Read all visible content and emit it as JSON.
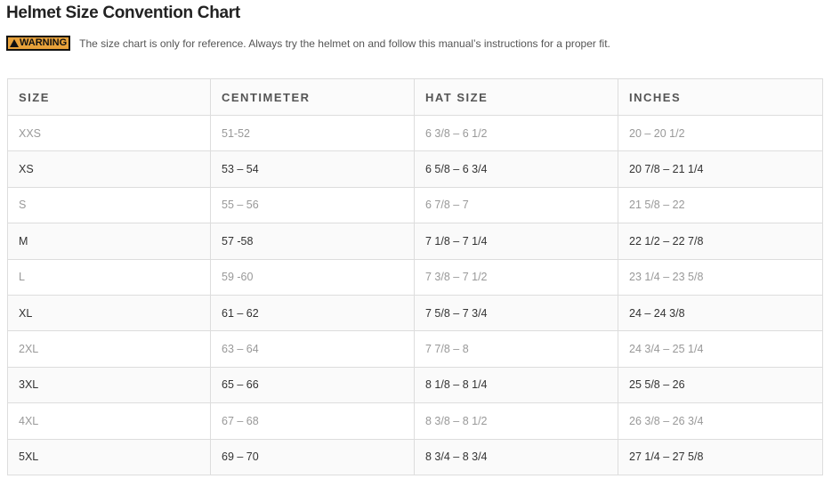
{
  "title": "Helmet Size Convention Chart",
  "warning": {
    "badge": "WARNING",
    "icon": "warning-triangle-icon",
    "text": "The size chart is only for reference. Always try the helmet on and follow this manual’s instructions for a proper fit.",
    "badge_color": "#e8a23a"
  },
  "table": {
    "headers": [
      "SIZE",
      "CENTIMETER",
      "HAT SIZE",
      "INCHES"
    ],
    "rows": [
      [
        "XXS",
        "51-52",
        "6 3/8 – 6 1/2",
        "20 – 20 1/2"
      ],
      [
        "XS",
        "53 – 54",
        "6 5/8 – 6 3/4",
        "20 7/8 – 21 1/4"
      ],
      [
        "S",
        "55 – 56",
        "6 7/8 – 7",
        "21 5/8 – 22"
      ],
      [
        "M",
        "57 -58",
        "7 1/8 – 7 1/4",
        "22 1/2 – 22 7/8"
      ],
      [
        "L",
        "59 -60",
        "7 3/8 – 7 1/2",
        "23 1/4 – 23 5/8"
      ],
      [
        "XL",
        "61 – 62",
        "7 5/8 – 7 3/4",
        "24 – 24 3/8"
      ],
      [
        "2XL",
        "63 – 64",
        "7 7/8 – 8",
        "24 3/4 – 25 1/4"
      ],
      [
        "3XL",
        "65 – 66",
        "8 1/8 – 8 1/4",
        "25 5/8 – 26"
      ],
      [
        "4XL",
        "67 – 68",
        "8 3/8 – 8 1/2",
        "26 3/8 – 26 3/4"
      ],
      [
        "5XL",
        "69 – 70",
        "8 3/4 – 8 3/4",
        "27 1/4 – 27 5/8"
      ]
    ]
  }
}
